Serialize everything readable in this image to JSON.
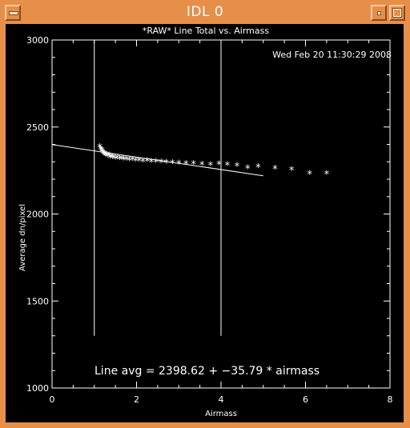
{
  "window": {
    "title": "IDL 0",
    "menu_icon": "window-menu-icon",
    "minimize_icon": "minimize-icon",
    "maximize_icon": "maximize-icon"
  },
  "plot": {
    "timestamp": "Wed Feb 20 11:30:29 2008",
    "annotation": "Line avg = 2398.62 + −35.79 * airmass"
  },
  "chart_data": {
    "type": "scatter",
    "title": "*RAW* Line Total vs. Airmass",
    "xlabel": "Airmass",
    "ylabel": "Average dn/pixel",
    "xlim": [
      0,
      8
    ],
    "ylim": [
      1000,
      3000
    ],
    "xticks": [
      0,
      2,
      4,
      6,
      8
    ],
    "yticks": [
      1000,
      1500,
      2000,
      2500,
      3000
    ],
    "grid": false,
    "marker": "*",
    "points": [
      [
        1.13,
        2385
      ],
      [
        1.15,
        2372
      ],
      [
        1.17,
        2365
      ],
      [
        1.19,
        2360
      ],
      [
        1.2,
        2352
      ],
      [
        1.22,
        2347
      ],
      [
        1.24,
        2342
      ],
      [
        1.26,
        2338
      ],
      [
        1.28,
        2335
      ],
      [
        1.3,
        2340
      ],
      [
        1.32,
        2332
      ],
      [
        1.35,
        2335
      ],
      [
        1.37,
        2325
      ],
      [
        1.4,
        2328
      ],
      [
        1.43,
        2322
      ],
      [
        1.46,
        2325
      ],
      [
        1.5,
        2318
      ],
      [
        1.55,
        2322
      ],
      [
        1.6,
        2315
      ],
      [
        1.65,
        2318
      ],
      [
        1.7,
        2312
      ],
      [
        1.76,
        2313
      ],
      [
        1.83,
        2308
      ],
      [
        1.9,
        2310
      ],
      [
        1.98,
        2305
      ],
      [
        2.06,
        2306
      ],
      [
        2.15,
        2302
      ],
      [
        2.25,
        2303
      ],
      [
        2.35,
        2300
      ],
      [
        2.46,
        2298
      ],
      [
        2.58,
        2296
      ],
      [
        2.7,
        2295
      ],
      [
        2.85,
        2292
      ],
      [
        3.0,
        2290
      ],
      [
        3.17,
        2288
      ],
      [
        3.35,
        2287
      ],
      [
        3.55,
        2282
      ],
      [
        3.75,
        2280
      ],
      [
        3.95,
        2284
      ],
      [
        4.15,
        2281
      ],
      [
        4.38,
        2275
      ],
      [
        4.63,
        2262
      ],
      [
        4.88,
        2270
      ],
      [
        5.28,
        2259
      ],
      [
        5.67,
        2253
      ],
      [
        6.1,
        2230
      ],
      [
        6.5,
        2229
      ]
    ],
    "fit_line": {
      "intercept": 2398.62,
      "slope": -35.79,
      "x_range": [
        0,
        5
      ]
    },
    "vertical_lines": [
      {
        "x": 1.0,
        "y_range": [
          1300,
          3000
        ]
      },
      {
        "x": 4.0,
        "y_range": [
          1300,
          3000
        ]
      }
    ]
  }
}
